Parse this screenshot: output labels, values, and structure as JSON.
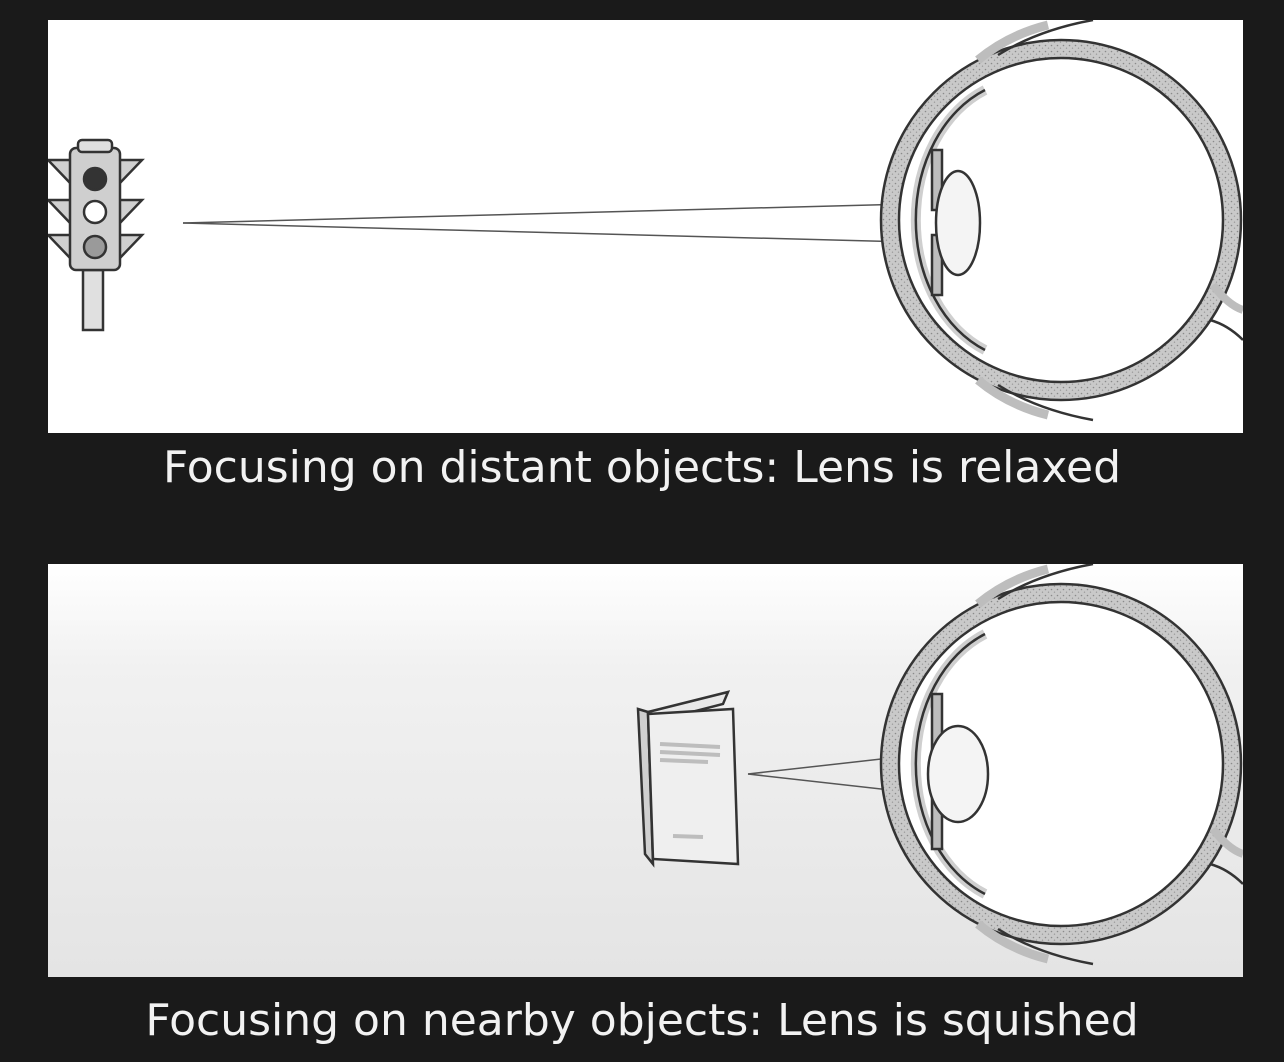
{
  "panels": [
    {
      "id": "distant",
      "object": "traffic-light",
      "lens_state": "relaxed",
      "caption": "Focusing on distant objects: Lens is relaxed"
    },
    {
      "id": "nearby",
      "object": "book",
      "lens_state": "squished",
      "caption": "Focusing on nearby objects: Lens is squished"
    }
  ],
  "colors": {
    "background": "#1a1a1a",
    "panel": "#ffffff",
    "line_art": "#333333",
    "caption_text": "#f2f2f2"
  }
}
